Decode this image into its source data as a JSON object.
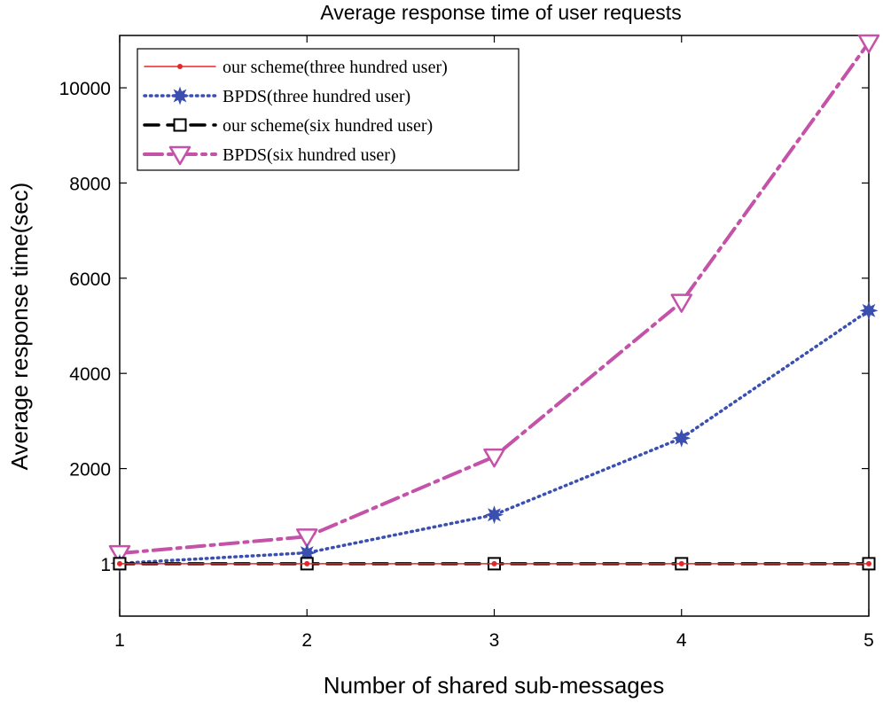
{
  "chart_data": {
    "type": "line",
    "title": "Average response time of user requests",
    "xlabel": "Number of shared sub-messages",
    "ylabel": "Average response time(sec)",
    "x": [
      1,
      2,
      3,
      4,
      5
    ],
    "xlim": [
      1,
      5
    ],
    "ylim": [
      -1100,
      11100
    ],
    "xticks": [
      1,
      2,
      3,
      4,
      5
    ],
    "yticks": [
      1,
      2000,
      4000,
      6000,
      8000,
      10000
    ],
    "grid": false,
    "legend_position": "top-left",
    "series": [
      {
        "name": "our scheme(three hundred user)",
        "values": [
          1,
          1,
          1,
          1,
          1
        ],
        "color": "#e8262a",
        "line_style": "solid",
        "marker": "dot"
      },
      {
        "name": "BPDS(three hundred user)",
        "values": [
          10,
          230,
          1030,
          2640,
          5320
        ],
        "color": "#3a4fb0",
        "line_style": "dotted",
        "marker": "star"
      },
      {
        "name": "our scheme(six hundred user)",
        "values": [
          1,
          1,
          1,
          1,
          1
        ],
        "color": "#000000",
        "line_style": "dashed",
        "marker": "square"
      },
      {
        "name": "BPDS(six hundred user)",
        "values": [
          220,
          570,
          2250,
          5500,
          10950
        ],
        "color": "#c452a8",
        "line_style": "dashdot",
        "marker": "triangle-down"
      }
    ]
  }
}
